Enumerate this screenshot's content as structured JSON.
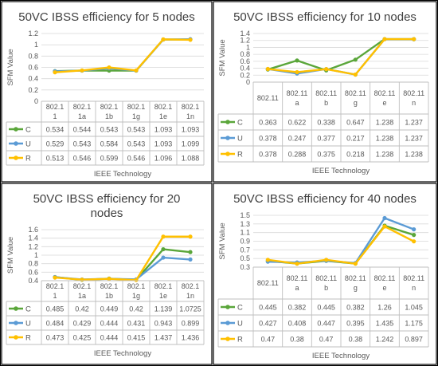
{
  "colors": {
    "C": "#5aa63a",
    "U": "#5b9bd5",
    "R": "#ffc000",
    "grid": "#d9d9d9",
    "axis": "#bfbfbf",
    "text": "#595959",
    "title": "#404040"
  },
  "chart_data": [
    {
      "type": "line",
      "title": "50VC IBSS efficiency for 5 nodes",
      "xlabel": "IEEE Technology",
      "ylabel": "SFM Value",
      "ylim": [
        0,
        1.2
      ],
      "yticks": [
        "0",
        "0.2",
        "0.4",
        "0.6",
        "0.8",
        "1",
        "1.2"
      ],
      "categories": [
        [
          "802.1",
          "1"
        ],
        [
          "802.1",
          "1a"
        ],
        [
          "802.1",
          "1b"
        ],
        [
          "802.1",
          "1g"
        ],
        [
          "802.1",
          "1e"
        ],
        [
          "802.1",
          "1n"
        ]
      ],
      "series": [
        {
          "name": "C",
          "color": "#5aa63a",
          "values": [
            0.534,
            0.544,
            0.543,
            0.543,
            1.093,
            1.093
          ],
          "labels": [
            "0.534",
            "0.544",
            "0.543",
            "0.543",
            "1.093",
            "1.093"
          ]
        },
        {
          "name": "U",
          "color": "#5b9bd5",
          "values": [
            0.529,
            0.543,
            0.584,
            0.543,
            1.093,
            1.099
          ],
          "labels": [
            "0.529",
            "0.543",
            "0.584",
            "0.543",
            "1.093",
            "1.099"
          ]
        },
        {
          "name": "R",
          "color": "#ffc000",
          "values": [
            0.513,
            0.546,
            0.599,
            0.546,
            1.096,
            1.088
          ],
          "labels": [
            "0.513",
            "0.546",
            "0.599",
            "0.546",
            "1.096",
            "1.088"
          ]
        }
      ],
      "grid": true
    },
    {
      "type": "line",
      "title": "50VC IBSS efficiency for 10 nodes",
      "xlabel": "IEEE Technology",
      "ylabel": "SFM Value",
      "ylim": [
        0,
        1.4
      ],
      "yticks": [
        "0",
        "0.2",
        "0.4",
        "0.6",
        "0.8",
        "1",
        "1.2",
        "1.4"
      ],
      "categories": [
        [
          "802.11"
        ],
        [
          "802.11",
          "a"
        ],
        [
          "802.11",
          "b"
        ],
        [
          "802.11",
          "g"
        ],
        [
          "802.11",
          "e"
        ],
        [
          "802.11",
          "n"
        ]
      ],
      "series": [
        {
          "name": "C",
          "color": "#5aa63a",
          "values": [
            0.363,
            0.622,
            0.338,
            0.647,
            1.238,
            1.237
          ],
          "labels": [
            "0.363",
            "0.622",
            "0.338",
            "0.647",
            "1.238",
            "1.237"
          ]
        },
        {
          "name": "U",
          "color": "#5b9bd5",
          "values": [
            0.378,
            0.247,
            0.377,
            0.217,
            1.238,
            1.237
          ],
          "labels": [
            "0.378",
            "0.247",
            "0.377",
            "0.217",
            "1.238",
            "1.237"
          ]
        },
        {
          "name": "R",
          "color": "#ffc000",
          "values": [
            0.378,
            0.288,
            0.375,
            0.218,
            1.238,
            1.238
          ],
          "labels": [
            "0.378",
            "0.288",
            "0.375",
            "0.218",
            "1.238",
            "1.238"
          ]
        }
      ],
      "grid": true
    },
    {
      "type": "line",
      "title": "50VC IBSS efficiency for 20 nodes",
      "xlabel": "IEEE Technology",
      "ylabel": "SFM Value",
      "ylim": [
        0.4,
        1.6
      ],
      "yticks": [
        "0.4",
        "0.6",
        "0.8",
        "1",
        "1.2",
        "1.4",
        "1.6"
      ],
      "categories": [
        [
          "802.1",
          "1"
        ],
        [
          "802.1",
          "1a"
        ],
        [
          "802.1",
          "1b"
        ],
        [
          "802.1",
          "1g"
        ],
        [
          "802.1",
          "1e"
        ],
        [
          "802.1",
          "1n"
        ]
      ],
      "series": [
        {
          "name": "C",
          "color": "#5aa63a",
          "values": [
            0.485,
            0.42,
            0.449,
            0.42,
            1.139,
            1.0725
          ],
          "labels": [
            "0.485",
            "0.42",
            "0.449",
            "0.42",
            "1.139",
            "1.0725"
          ]
        },
        {
          "name": "U",
          "color": "#5b9bd5",
          "values": [
            0.484,
            0.429,
            0.444,
            0.431,
            0.943,
            0.899
          ],
          "labels": [
            "0.484",
            "0.429",
            "0.444",
            "0.431",
            "0.943",
            "0.899"
          ]
        },
        {
          "name": "R",
          "color": "#ffc000",
          "values": [
            0.473,
            0.425,
            0.444,
            0.415,
            1.437,
            1.436
          ],
          "labels": [
            "0.473",
            "0.425",
            "0.444",
            "0.415",
            "1.437",
            "1.436"
          ]
        }
      ],
      "grid": true
    },
    {
      "type": "line",
      "title": "50VC IBSS efficiency for 40 nodes",
      "xlabel": "IEEE Technology",
      "ylabel": "SFM Value",
      "ylim": [
        0.3,
        1.5
      ],
      "yticks": [
        "0.3",
        "0.5",
        "0.7",
        "0.9",
        "1.1",
        "1.3",
        "1.5"
      ],
      "categories": [
        [
          "802.11"
        ],
        [
          "802.11",
          "a"
        ],
        [
          "802.11",
          "b"
        ],
        [
          "802.11",
          "g"
        ],
        [
          "802.11",
          "e"
        ],
        [
          "802.11",
          "n"
        ]
      ],
      "series": [
        {
          "name": "C",
          "color": "#5aa63a",
          "values": [
            0.445,
            0.382,
            0.445,
            0.382,
            1.26,
            1.045
          ],
          "labels": [
            "0.445",
            "0.382",
            "0.445",
            "0.382",
            "1.26",
            "1.045"
          ]
        },
        {
          "name": "U",
          "color": "#5b9bd5",
          "values": [
            0.427,
            0.408,
            0.447,
            0.395,
            1.435,
            1.175
          ],
          "labels": [
            "0.427",
            "0.408",
            "0.447",
            "0.395",
            "1.435",
            "1.175"
          ]
        },
        {
          "name": "R",
          "color": "#ffc000",
          "values": [
            0.47,
            0.38,
            0.47,
            0.38,
            1.242,
            0.897
          ],
          "labels": [
            "0.47",
            "0.38",
            "0.47",
            "0.38",
            "1.242",
            "0.897"
          ]
        }
      ],
      "grid": true
    }
  ]
}
